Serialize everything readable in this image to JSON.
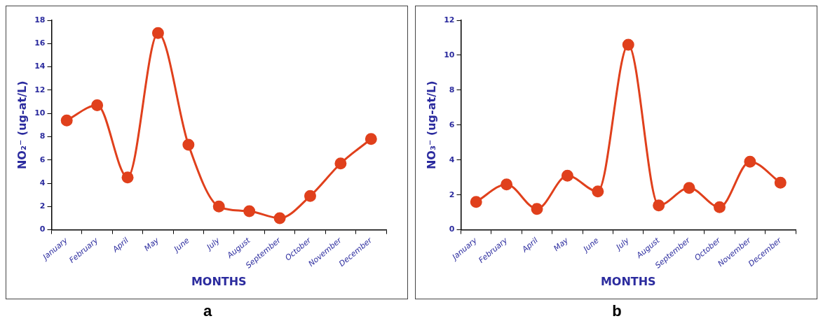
{
  "chart_data": [
    {
      "type": "line",
      "categories": [
        "January",
        "February",
        "April",
        "May",
        "June",
        "July",
        "August",
        "September",
        "October",
        "November",
        "December"
      ],
      "values": [
        9.4,
        10.7,
        4.5,
        16.9,
        7.3,
        2.0,
        1.6,
        1.0,
        2.9,
        5.7,
        7.8
      ],
      "color": "#e0401c",
      "xlabel": "MONTHS",
      "ylabel": "NO₂⁻ (ug-at/L)",
      "ylim": [
        0,
        18
      ],
      "yticks": [
        0,
        2,
        4,
        6,
        8,
        10,
        12,
        14,
        16,
        18
      ],
      "marker": "circle",
      "grid": false,
      "legend": false,
      "annotations": [
        "a"
      ]
    },
    {
      "type": "line",
      "categories": [
        "January",
        "February",
        "April",
        "May",
        "June",
        "July",
        "August",
        "September",
        "October",
        "November",
        "December"
      ],
      "values": [
        1.6,
        2.6,
        1.2,
        3.1,
        2.2,
        10.6,
        1.4,
        2.4,
        1.3,
        3.9,
        2.7
      ],
      "color": "#e0401c",
      "xlabel": "MONTHS",
      "ylabel": "NO₃⁻ (ug-at/L)",
      "ylim": [
        0,
        12
      ],
      "yticks": [
        0,
        2,
        4,
        6,
        8,
        10,
        12
      ],
      "marker": "circle",
      "grid": false,
      "legend": false,
      "annotations": [
        "b"
      ]
    }
  ]
}
